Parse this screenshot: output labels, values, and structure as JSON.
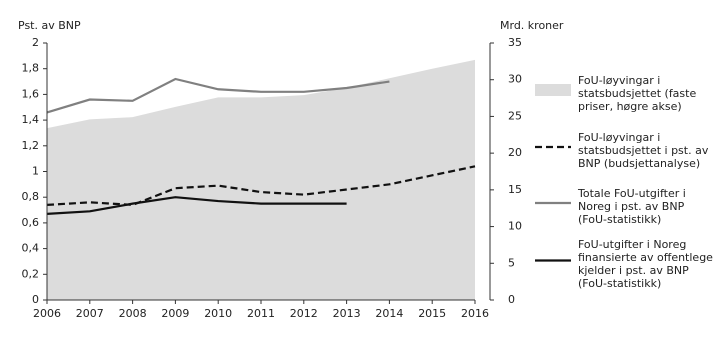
{
  "chart_data": {
    "type": "line",
    "y_label": "Pst. av BNP",
    "y2_label": "Mrd. kroner",
    "x": [
      2006,
      2007,
      2008,
      2009,
      2010,
      2011,
      2012,
      2013,
      2014,
      2015,
      2016
    ],
    "xlim": [
      2006,
      2016
    ],
    "xticks": [
      2006,
      2007,
      2008,
      2009,
      2010,
      2011,
      2012,
      2013,
      2014,
      2015,
      2016
    ],
    "ylim": [
      0,
      2
    ],
    "yticks": [
      0,
      {
        "value": 0.2,
        "label": "0,2"
      },
      {
        "value": 0.4,
        "label": "0,4"
      },
      {
        "value": 0.6,
        "label": "0,6"
      },
      {
        "value": 0.8,
        "label": "0,8"
      },
      1,
      {
        "value": 1.2,
        "label": "1,2"
      },
      {
        "value": 1.4,
        "label": "1,4"
      },
      {
        "value": 1.6,
        "label": "1,6"
      },
      {
        "value": 1.8,
        "label": "1,8"
      },
      2
    ],
    "y2lim": [
      0,
      35
    ],
    "y2ticks": [
      0,
      5,
      10,
      15,
      20,
      25,
      30,
      35
    ],
    "series": [
      {
        "name": "FoU-løyvingar i statsbudsjettet (faste priser, høgre akse)",
        "color": "#dcdcdc",
        "axis": "y2",
        "style": "area",
        "values": [
          23.4,
          24.6,
          24.9,
          26.3,
          27.6,
          27.6,
          27.9,
          28.9,
          30.2,
          31.5,
          32.7
        ]
      },
      {
        "name": "FoU-løyvingar i statsbudsjettet i pst. av BNP (budsjettanalyse)",
        "color": "#111111",
        "style": "dashed",
        "values": [
          0.74,
          0.76,
          0.74,
          0.87,
          0.89,
          0.84,
          0.82,
          0.86,
          0.9,
          0.97,
          1.04
        ]
      },
      {
        "name": "Totale FoU-utgifter i Noreg i pst. av BNP (FoU-statistikk)",
        "color": "#808080",
        "style": "solid",
        "values": [
          1.46,
          1.56,
          1.55,
          1.72,
          1.64,
          1.62,
          1.62,
          1.65,
          1.7,
          null,
          null
        ]
      },
      {
        "name": "FoU-utgifter i Noreg finansierte av offentlege kjelder i pst. av BNP (FoU-statistikk)",
        "color": "#111111",
        "style": "solid",
        "values": [
          0.67,
          0.69,
          0.75,
          0.8,
          0.77,
          0.75,
          0.75,
          0.75,
          null,
          null,
          null
        ]
      }
    ]
  }
}
